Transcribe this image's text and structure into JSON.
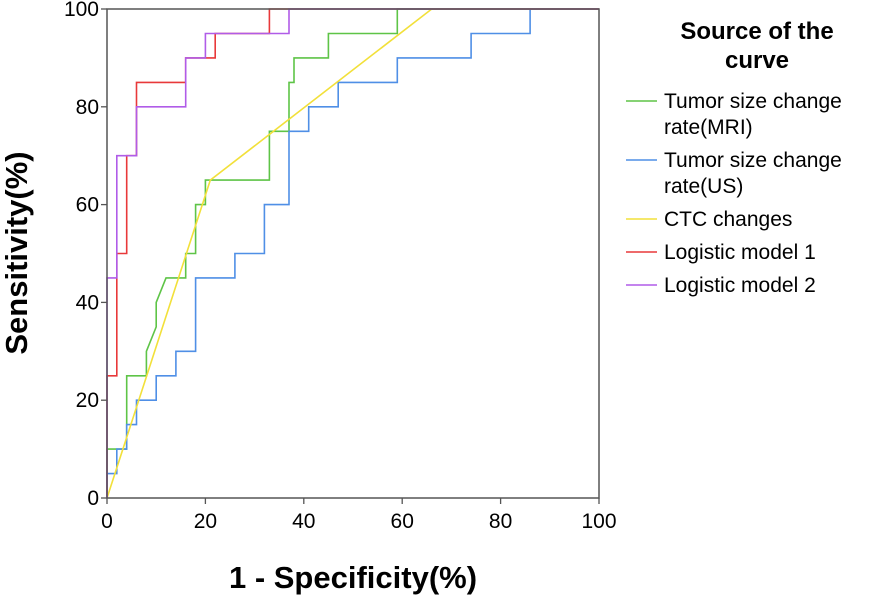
{
  "chart_data": {
    "type": "line",
    "title": "",
    "xlabel": "1 - Specificity(%)",
    "ylabel": "Sensitivity(%)",
    "xlim": [
      0,
      100
    ],
    "ylim": [
      0,
      100
    ],
    "xticks": [
      0,
      20,
      40,
      60,
      80,
      100
    ],
    "yticks": [
      0,
      20,
      40,
      60,
      80,
      100
    ],
    "grid": false,
    "legend": {
      "title_lines": [
        "Source of the",
        "curve"
      ],
      "position": "right"
    },
    "series": [
      {
        "name": "Tumor size change rate(MRI)",
        "label_lines": [
          "Tumor size change",
          "rate(MRI)"
        ],
        "color": "#5ec447",
        "step": true,
        "points": [
          [
            0,
            0
          ],
          [
            0,
            10
          ],
          [
            4,
            10
          ],
          [
            4,
            25
          ],
          [
            8,
            25
          ],
          [
            8,
            30
          ],
          [
            10,
            35
          ],
          [
            10,
            40
          ],
          [
            12,
            45
          ],
          [
            16,
            45
          ],
          [
            16,
            50
          ],
          [
            18,
            50
          ],
          [
            18,
            60
          ],
          [
            20,
            60
          ],
          [
            20,
            65
          ],
          [
            33,
            65
          ],
          [
            33,
            75
          ],
          [
            37,
            75
          ],
          [
            37,
            85
          ],
          [
            38,
            85
          ],
          [
            38,
            90
          ],
          [
            45,
            90
          ],
          [
            45,
            95
          ],
          [
            59,
            95
          ],
          [
            59,
            100
          ],
          [
            100,
            100
          ]
        ]
      },
      {
        "name": "Tumor size change rate(US)",
        "label_lines": [
          "Tumor size change",
          "rate(US)"
        ],
        "color": "#4f8fe6",
        "step": true,
        "points": [
          [
            0,
            0
          ],
          [
            0,
            5
          ],
          [
            2,
            5
          ],
          [
            2,
            10
          ],
          [
            4,
            10
          ],
          [
            4,
            15
          ],
          [
            6,
            15
          ],
          [
            6,
            20
          ],
          [
            10,
            20
          ],
          [
            10,
            25
          ],
          [
            14,
            25
          ],
          [
            14,
            30
          ],
          [
            18,
            30
          ],
          [
            18,
            45
          ],
          [
            26,
            45
          ],
          [
            26,
            50
          ],
          [
            32,
            50
          ],
          [
            32,
            60
          ],
          [
            37,
            60
          ],
          [
            37,
            75
          ],
          [
            41,
            75
          ],
          [
            41,
            80
          ],
          [
            47,
            80
          ],
          [
            47,
            85
          ],
          [
            59,
            85
          ],
          [
            59,
            90
          ],
          [
            74,
            90
          ],
          [
            74,
            95
          ],
          [
            86,
            95
          ],
          [
            86,
            100
          ],
          [
            100,
            100
          ]
        ]
      },
      {
        "name": "CTC changes",
        "label_lines": [
          "CTC changes"
        ],
        "color": "#f2e03a",
        "step": false,
        "points": [
          [
            0,
            0
          ],
          [
            21,
            65
          ],
          [
            66,
            100
          ],
          [
            100,
            100
          ]
        ]
      },
      {
        "name": "Logistic model 1",
        "label_lines": [
          "Logistic model 1"
        ],
        "color": "#e8393a",
        "step": true,
        "points": [
          [
            0,
            0
          ],
          [
            0,
            25
          ],
          [
            2,
            25
          ],
          [
            2,
            50
          ],
          [
            4,
            50
          ],
          [
            4,
            70
          ],
          [
            6,
            70
          ],
          [
            6,
            85
          ],
          [
            16,
            85
          ],
          [
            16,
            90
          ],
          [
            22,
            90
          ],
          [
            22,
            95
          ],
          [
            33,
            95
          ],
          [
            33,
            100
          ],
          [
            100,
            100
          ]
        ]
      },
      {
        "name": "Logistic model 2",
        "label_lines": [
          "Logistic model 2"
        ],
        "color": "#b05ce8",
        "step": true,
        "points": [
          [
            0,
            0
          ],
          [
            0,
            45
          ],
          [
            2,
            45
          ],
          [
            2,
            70
          ],
          [
            6,
            70
          ],
          [
            6,
            80
          ],
          [
            16,
            80
          ],
          [
            16,
            90
          ],
          [
            20,
            90
          ],
          [
            20,
            95
          ],
          [
            37,
            95
          ],
          [
            37,
            100
          ],
          [
            100,
            100
          ]
        ]
      }
    ]
  }
}
